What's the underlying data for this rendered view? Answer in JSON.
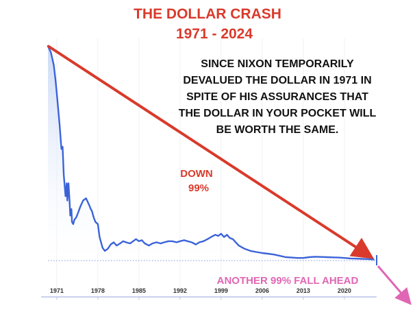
{
  "chart_data": {
    "type": "area",
    "title": "THE DOLLAR CRASH",
    "subtitle": "1971 - 2024",
    "xlabel": "",
    "ylabel": "",
    "x_ticks": [
      "1971",
      "1978",
      "1985",
      "1992",
      "1999",
      "2006",
      "2013",
      "2020"
    ],
    "xlim": [
      1969.5,
      2025.5
    ],
    "ylim": [
      0,
      100
    ],
    "grid": true,
    "legend": "none",
    "series": [
      {
        "x": [
          1969.5,
          1970.0,
          1970.5,
          1970.8,
          1971.0,
          1971.2,
          1971.5,
          1971.8,
          1972.0,
          1972.2,
          1972.5,
          1972.7,
          1972.8,
          1973.0,
          1973.2,
          1973.3,
          1973.5,
          1973.6,
          1973.8,
          1974.0,
          1974.3,
          1974.6,
          1975.0,
          1975.5,
          1976.0,
          1976.5,
          1976.8,
          1977.0,
          1977.3,
          1977.6,
          1978.0,
          1978.3,
          1978.8,
          1979.2,
          1979.7,
          1980.2,
          1980.7,
          1981.2,
          1981.8,
          1982.3,
          1982.8,
          1983.5,
          1984.0,
          1984.5,
          1985.0,
          1985.5,
          1986.0,
          1986.7,
          1987.3,
          1988.0,
          1988.7,
          1989.3,
          1990.0,
          1990.7,
          1991.4,
          1992.0,
          1992.7,
          1993.3,
          1994.0,
          1994.7,
          1995.3,
          1996.0,
          1996.7,
          1997.3,
          1998.0,
          1998.5,
          1999.0,
          1999.5,
          2000.0,
          2000.5,
          2001.0,
          2001.5,
          2002.0,
          2003.0,
          2004.0,
          2005.0,
          2006.0,
          2007.0,
          2008.0,
          2009.0,
          2010.0,
          2011.0,
          2012.0,
          2013.0,
          2014.0,
          2015.0,
          2016.0,
          2017.0,
          2018.0,
          2019.0,
          2020.0,
          2021.0,
          2022.0,
          2023.0,
          2024.0,
          2025.0
        ],
        "values": [
          100,
          97,
          91,
          84,
          78,
          72,
          63,
          52,
          53,
          40,
          30,
          36,
          28,
          36,
          27,
          21,
          24,
          18,
          17,
          19,
          20,
          22,
          25,
          28,
          29,
          26,
          24,
          23,
          20,
          18,
          17,
          11,
          6,
          4.5,
          5.5,
          7.5,
          8.5,
          7,
          8,
          9,
          8.5,
          8,
          9,
          10,
          9,
          9.5,
          8,
          7,
          8,
          8.5,
          8,
          8.5,
          9,
          9,
          8.5,
          9,
          9.5,
          9,
          8.5,
          7.5,
          8.5,
          9,
          10,
          11,
          12,
          11.5,
          12.5,
          11,
          12,
          10.5,
          10,
          8.5,
          7,
          5.5,
          4.5,
          4,
          3.5,
          3.2,
          2.8,
          2.2,
          1.6,
          1.4,
          1.2,
          1.2,
          1.6,
          1.8,
          1.7,
          1.6,
          1.5,
          1.4,
          1.2,
          1.0,
          0.9,
          0.8,
          0.7,
          0.5
        ]
      }
    ],
    "annotations": {
      "note_lines": [
        "SINCE NIXON TEMPORARILY",
        "DEVALUED THE DOLLAR IN 1971 IN",
        "SPITE OF HIS ASSURANCES THAT",
        "THE DOLLAR IN YOUR POCKET WILL",
        "BE WORTH THE SAME."
      ],
      "down_label": "DOWN",
      "down_value": "99%",
      "ahead_label": "ANOTHER  99% FALL AHEAD"
    },
    "colors": {
      "title": "#d93a2b",
      "line": "#3b63d8",
      "fill_top": "#c9d8f5",
      "arrow_red": "#d93a2b",
      "arrow_pink": "#e066b4",
      "note": "#111111",
      "axis": "#b9c4e8",
      "grid": "#eef1f8"
    }
  }
}
